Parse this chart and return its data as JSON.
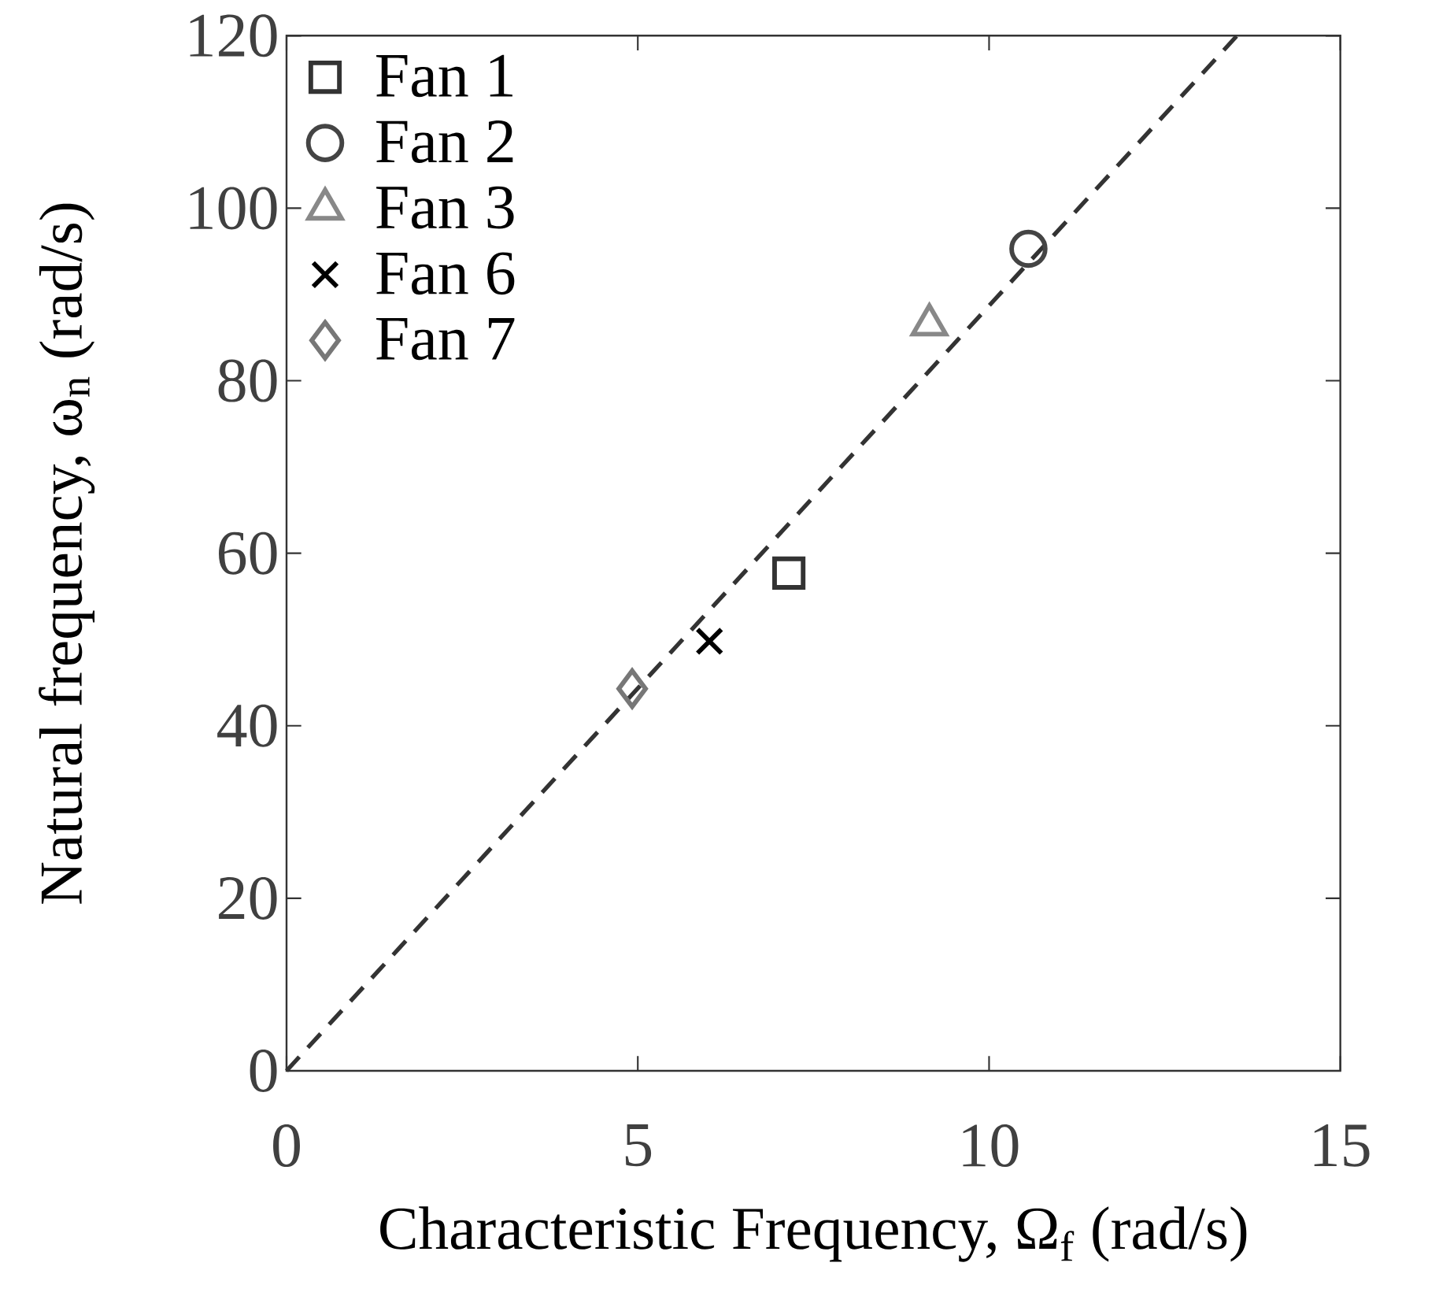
{
  "chart_data": {
    "type": "scatter",
    "xlabel": "Characteristic Frequency, Ω$_{f}$ (rad/s)",
    "ylabel": "Natural frequency, ω$_{n}$ (rad/s)",
    "xlim": [
      0,
      15
    ],
    "ylim": [
      0,
      120
    ],
    "xticks": [
      0,
      5,
      10,
      15
    ],
    "yticks": [
      0,
      20,
      40,
      60,
      80,
      100,
      120
    ],
    "grid": false,
    "legend": "top left",
    "series": [
      {
        "name": "Fan 1",
        "color": "#333333",
        "marker": "square",
        "x": [
          7.15
        ],
        "values": [
          57.7
        ]
      },
      {
        "name": "Fan 2",
        "color": "#444444",
        "marker": "circle",
        "x": [
          10.56
        ],
        "values": [
          95.3
        ]
      },
      {
        "name": "Fan 3",
        "color": "#888888",
        "marker": "triangle",
        "x": [
          9.15
        ],
        "values": [
          86.5
        ]
      },
      {
        "name": "Fan 6",
        "color": "#000000",
        "marker": "cross",
        "x": [
          6.02
        ],
        "values": [
          49.8
        ]
      },
      {
        "name": "Fan 7",
        "color": "#777777",
        "marker": "diamond",
        "x": [
          4.92
        ],
        "values": [
          44.3
        ]
      },
      {
        "type": "line",
        "color": "#333333",
        "line_style": "dashed",
        "marker": "none",
        "x": [
          0,
          13.53
        ],
        "values": [
          0,
          120
        ]
      }
    ]
  }
}
